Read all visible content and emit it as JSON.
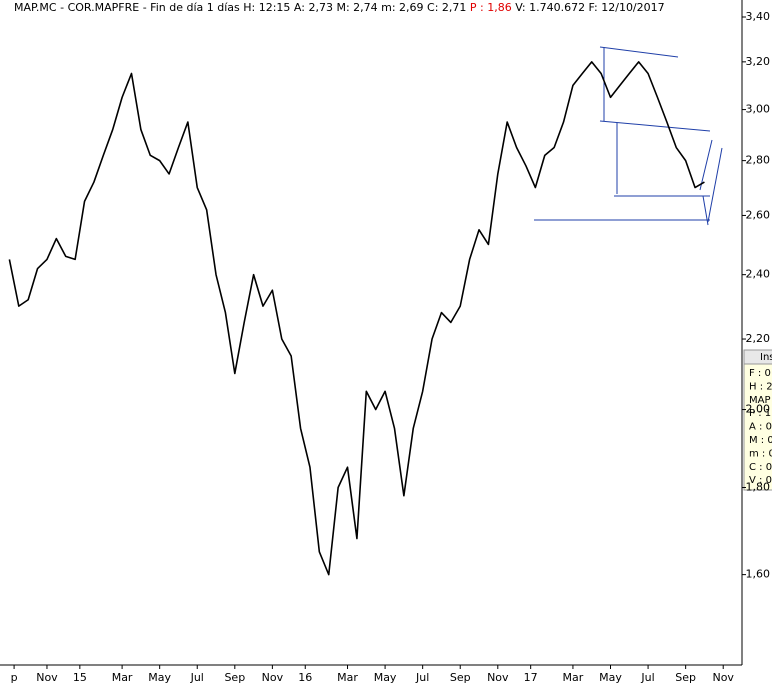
{
  "chart_data": {
    "type": "line",
    "title": [
      "MAP.MC - COR.MAPFRE - Fin de día 1 días H: 12:15 A: 2,73 M: 2,74 m: 2,69 C: 2,71",
      "P : 1,86",
      "V: 1.740.672 F: 12/10/2017"
    ],
    "log_scale": true,
    "grid": false,
    "xlim": [
      -1,
      78
    ],
    "xticks": [
      {
        "value": 0.5,
        "label": "p"
      },
      {
        "value": 4,
        "label": "Nov"
      },
      {
        "value": 7.5,
        "label": "15"
      },
      {
        "value": 12,
        "label": "Mar"
      },
      {
        "value": 16,
        "label": "May"
      },
      {
        "value": 20,
        "label": "Jul"
      },
      {
        "value": 24,
        "label": "Sep"
      },
      {
        "value": 28,
        "label": "Nov"
      },
      {
        "value": 31.5,
        "label": "16"
      },
      {
        "value": 36,
        "label": "Mar"
      },
      {
        "value": 40,
        "label": "May"
      },
      {
        "value": 44,
        "label": "Jul"
      },
      {
        "value": 48,
        "label": "Sep"
      },
      {
        "value": 52,
        "label": "Nov"
      },
      {
        "value": 55.5,
        "label": "17"
      },
      {
        "value": 60,
        "label": "Mar"
      },
      {
        "value": 64,
        "label": "May"
      },
      {
        "value": 68,
        "label": "Jul"
      },
      {
        "value": 72,
        "label": "Sep"
      },
      {
        "value": 76,
        "label": "Nov"
      }
    ],
    "ylim": [
      1.416,
      3.479
    ],
    "yticks": [
      {
        "value": 1.6,
        "label": "1,60"
      },
      {
        "value": 1.8,
        "label": "1,80"
      },
      {
        "value": 2.0,
        "label": "2,00"
      },
      {
        "value": 2.2,
        "label": "2,20"
      },
      {
        "value": 2.4,
        "label": "2,40"
      },
      {
        "value": 2.6,
        "label": "2,60"
      },
      {
        "value": 2.8,
        "label": "2,80"
      },
      {
        "value": 3.0,
        "label": "3,00"
      },
      {
        "value": 3.2,
        "label": "3,20"
      },
      {
        "value": 3.4,
        "label": "3,40"
      }
    ],
    "series": [
      {
        "color": "#000000",
        "values": [
          2.45,
          2.3,
          2.32,
          2.42,
          2.45,
          2.52,
          2.46,
          2.45,
          2.65,
          2.72,
          2.82,
          2.92,
          3.05,
          3.15,
          2.92,
          2.82,
          2.8,
          2.75,
          2.85,
          2.95,
          2.7,
          2.62,
          2.4,
          2.28,
          2.1,
          2.25,
          2.4,
          2.3,
          2.35,
          2.2,
          2.15,
          1.95,
          1.85,
          1.65,
          1.6,
          1.8,
          1.85,
          1.68,
          2.05,
          2.0,
          2.05,
          1.95,
          1.78,
          1.95,
          2.05,
          2.2,
          2.28,
          2.25,
          2.3,
          2.45,
          2.55,
          2.5,
          2.75,
          2.95,
          2.85,
          2.78,
          2.7,
          2.82,
          2.85,
          2.95,
          3.1,
          3.15,
          3.2,
          3.15,
          3.05,
          3.1,
          3.15,
          3.2,
          3.15,
          3.05,
          2.95,
          2.85,
          2.8,
          2.7,
          2.72
        ]
      }
    ],
    "info_panel": {
      "title": "Ins",
      "lines": [
        "F : 0",
        "H : 2",
        "MAP",
        "P : 1",
        "A : 0",
        "M : 0",
        "m : 0",
        "C : 0",
        "V : 0"
      ]
    }
  }
}
